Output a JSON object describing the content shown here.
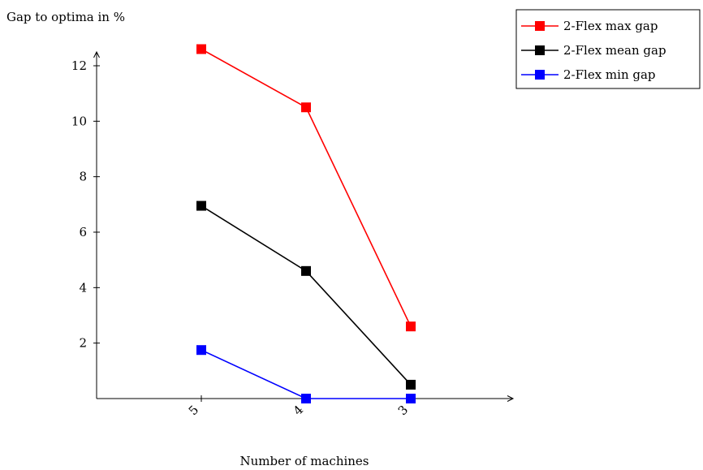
{
  "chart_data": {
    "type": "line",
    "title": "",
    "ylabel": "Gap to optima in %",
    "xlabel": "Number of machines",
    "categories": [
      "5",
      "4",
      "3"
    ],
    "ylim": [
      0,
      12.8
    ],
    "yticks": [
      2,
      4,
      6,
      8,
      10,
      12
    ],
    "grid": false,
    "legend_position": "top-right",
    "series": [
      {
        "name": "2-Flex max gap",
        "color": "#ff0000",
        "values": [
          12.6,
          10.5,
          2.6
        ]
      },
      {
        "name": "2-Flex mean gap",
        "color": "#000000",
        "values": [
          6.95,
          4.6,
          0.5
        ]
      },
      {
        "name": "2-Flex min gap",
        "color": "#0000ff",
        "values": [
          1.75,
          0.0,
          0.0
        ]
      }
    ]
  }
}
